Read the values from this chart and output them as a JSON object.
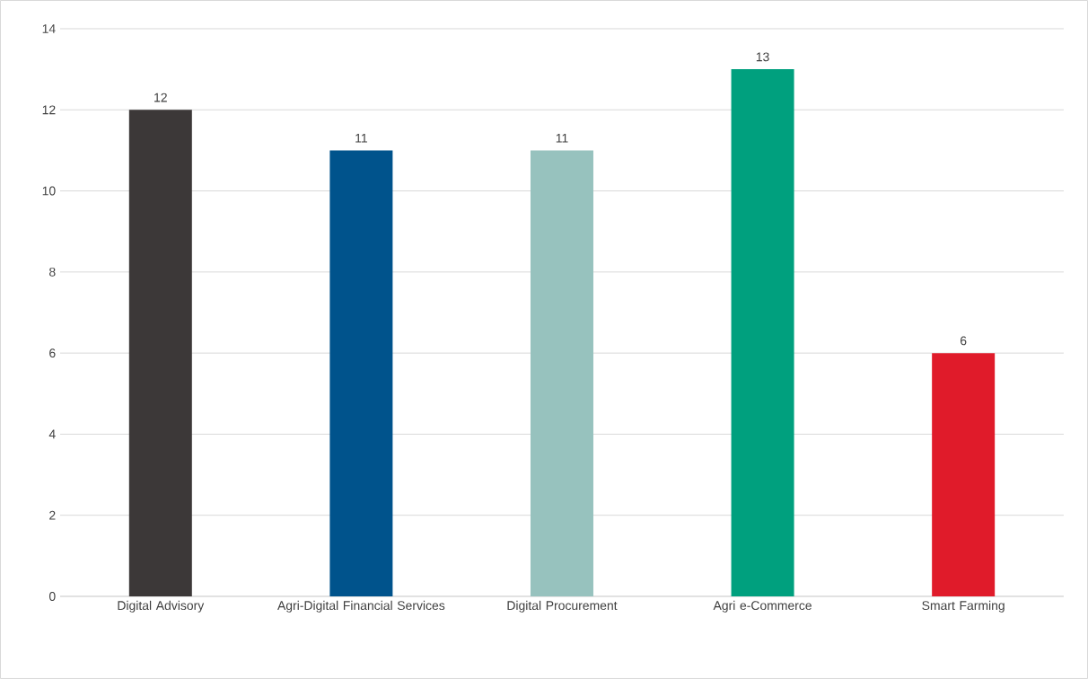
{
  "chart_data": {
    "type": "bar",
    "categories": [
      "Digital Advisory",
      "Agri-Digital Financial Services",
      "Digital Procurement",
      "Agri e-Commerce",
      "Smart Farming"
    ],
    "values": [
      12,
      11,
      11,
      13,
      6
    ],
    "colors": [
      "#3c3838",
      "#00538c",
      "#97c2be",
      "#00a07e",
      "#e01b2a"
    ],
    "ylim": [
      0,
      14
    ],
    "yticks": [
      0,
      2,
      4,
      6,
      8,
      10,
      12,
      14
    ],
    "grid": "y",
    "data_labels": true
  }
}
